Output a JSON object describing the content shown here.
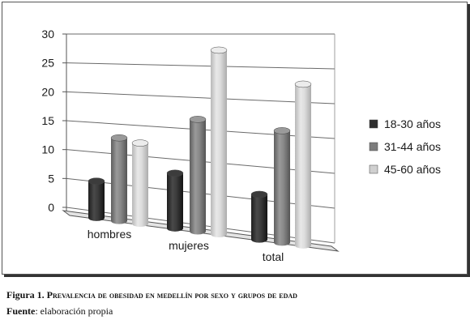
{
  "chart_data": {
    "type": "bar",
    "categories": [
      "hombres",
      "mujeres",
      "total"
    ],
    "series": [
      {
        "name": "18-30 años",
        "values": [
          6.2,
          8.8,
          6.8
        ]
      },
      {
        "name": "31-44 años",
        "values": [
          13.8,
          17.6,
          16.6
        ]
      },
      {
        "name": "45-60 años",
        "values": [
          13.2,
          28.5,
          23.6
        ]
      }
    ],
    "ylim": [
      0,
      30
    ],
    "y_ticks": [
      "0",
      "5",
      "10",
      "15",
      "20",
      "25",
      "30"
    ],
    "grid": true,
    "legend_position": "right",
    "colors": [
      "#2e2e2e",
      "#7c7c7c",
      "#d0d0d0"
    ]
  },
  "caption": {
    "prefix": "Figura 1.",
    "text": "Prevalencia de obesidad en medellín por sexo y grupos de edad"
  },
  "source": {
    "label": "Fuente",
    "text": ": elaboración propia"
  }
}
